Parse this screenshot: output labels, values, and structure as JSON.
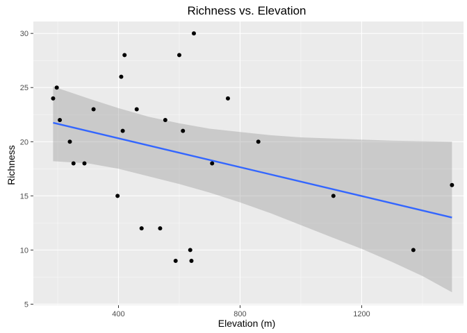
{
  "chart_data": {
    "type": "scatter",
    "title": "Richness vs. Elevation",
    "xlabel": "Elevation (m)",
    "ylabel": "Richness",
    "xlim": [
      120,
      1535
    ],
    "ylim": [
      4.9,
      31.1
    ],
    "xticks": [
      400,
      800,
      1200
    ],
    "yticks": [
      5,
      10,
      15,
      20,
      25,
      30
    ],
    "grid": true,
    "points": [
      {
        "x": 185,
        "y": 24
      },
      {
        "x": 197,
        "y": 25
      },
      {
        "x": 207,
        "y": 22
      },
      {
        "x": 240,
        "y": 20
      },
      {
        "x": 252,
        "y": 18
      },
      {
        "x": 288,
        "y": 18
      },
      {
        "x": 318,
        "y": 23
      },
      {
        "x": 397,
        "y": 15
      },
      {
        "x": 409,
        "y": 26
      },
      {
        "x": 414,
        "y": 21
      },
      {
        "x": 420,
        "y": 28
      },
      {
        "x": 460,
        "y": 23
      },
      {
        "x": 476,
        "y": 12
      },
      {
        "x": 537,
        "y": 12
      },
      {
        "x": 554,
        "y": 22
      },
      {
        "x": 588,
        "y": 9
      },
      {
        "x": 600,
        "y": 28
      },
      {
        "x": 612,
        "y": 21
      },
      {
        "x": 636,
        "y": 10
      },
      {
        "x": 640,
        "y": 9
      },
      {
        "x": 648,
        "y": 30
      },
      {
        "x": 708,
        "y": 18
      },
      {
        "x": 760,
        "y": 24
      },
      {
        "x": 860,
        "y": 20
      },
      {
        "x": 1107,
        "y": 15
      },
      {
        "x": 1370,
        "y": 10
      },
      {
        "x": 1497,
        "y": 16
      }
    ],
    "fit": {
      "method": "lm",
      "line": [
        {
          "x": 185,
          "y": 21.75
        },
        {
          "x": 1497,
          "y": 13.0
        }
      ],
      "ribbon": [
        {
          "x": 185,
          "lower": 18.2,
          "upper": 25.1
        },
        {
          "x": 300,
          "lower": 18.0,
          "upper": 24.0
        },
        {
          "x": 400,
          "lower": 17.5,
          "upper": 23.1
        },
        {
          "x": 500,
          "lower": 16.8,
          "upper": 22.3
        },
        {
          "x": 600,
          "lower": 16.1,
          "upper": 21.7
        },
        {
          "x": 700,
          "lower": 15.3,
          "upper": 21.2
        },
        {
          "x": 800,
          "lower": 14.4,
          "upper": 20.9
        },
        {
          "x": 900,
          "lower": 13.4,
          "upper": 20.6
        },
        {
          "x": 1000,
          "lower": 12.3,
          "upper": 20.4
        },
        {
          "x": 1100,
          "lower": 11.2,
          "upper": 20.3
        },
        {
          "x": 1200,
          "lower": 10.1,
          "upper": 20.2
        },
        {
          "x": 1300,
          "lower": 8.9,
          "upper": 20.1
        },
        {
          "x": 1400,
          "lower": 7.6,
          "upper": 20.05
        },
        {
          "x": 1497,
          "lower": 6.1,
          "upper": 20.0
        }
      ]
    },
    "colors": {
      "panel": "#ebebeb",
      "grid_major": "#ffffff",
      "point": "#000000",
      "line": "#3366ff",
      "ribbon": "#999999",
      "tick": "#333333"
    }
  }
}
